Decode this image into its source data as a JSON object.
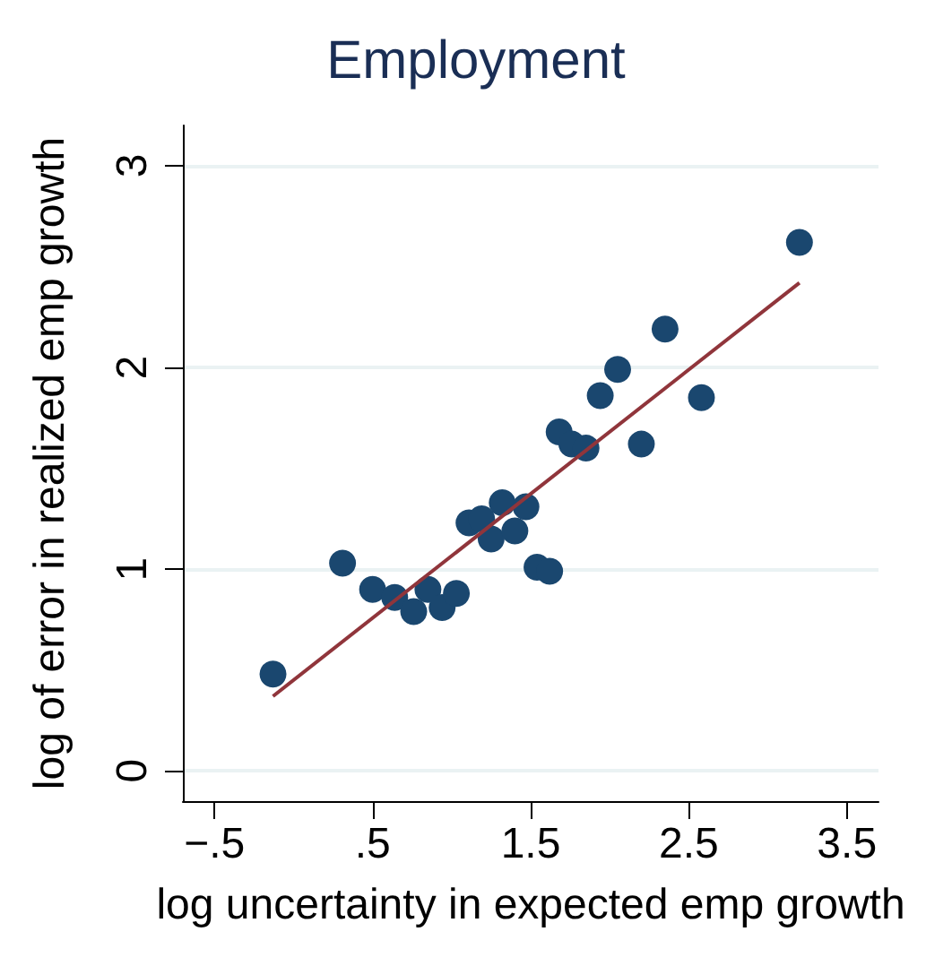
{
  "chart_data": {
    "type": "scatter",
    "title": "Employment",
    "xlabel": "log uncertainty in expected emp growth",
    "ylabel": "log of error in realized emp growth",
    "xlim": [
      -0.7,
      3.7
    ],
    "xticks": [
      {
        "value": -0.5,
        "label": "−.5"
      },
      {
        "value": 0.5,
        "label": ".5"
      },
      1.5,
      2.5,
      3.5
    ],
    "ylim": [
      -0.15,
      3.2
    ],
    "yticks": [
      0,
      1,
      2,
      3
    ],
    "grid": "y",
    "marker": "circle",
    "series": [
      {
        "color": "#1a476f",
        "x": [
          -0.13,
          0.31,
          0.5,
          0.64,
          0.76,
          0.85,
          0.94,
          1.03,
          1.11,
          1.19,
          1.25,
          1.32,
          1.4,
          1.47,
          1.54,
          1.62,
          1.68,
          1.76,
          1.85,
          1.94,
          2.05,
          2.2,
          2.35,
          2.58,
          3.2
        ],
        "values": [
          0.48,
          1.03,
          0.9,
          0.86,
          0.79,
          0.9,
          0.81,
          0.88,
          1.23,
          1.25,
          1.15,
          1.33,
          1.19,
          1.31,
          1.01,
          0.99,
          1.68,
          1.62,
          1.6,
          1.86,
          1.99,
          1.62,
          2.19,
          1.85,
          2.62
        ]
      },
      {
        "type": "line",
        "color": "#90353b",
        "x": [
          -0.13,
          3.2
        ],
        "values": [
          0.37,
          2.42
        ],
        "marker": "none"
      }
    ]
  }
}
